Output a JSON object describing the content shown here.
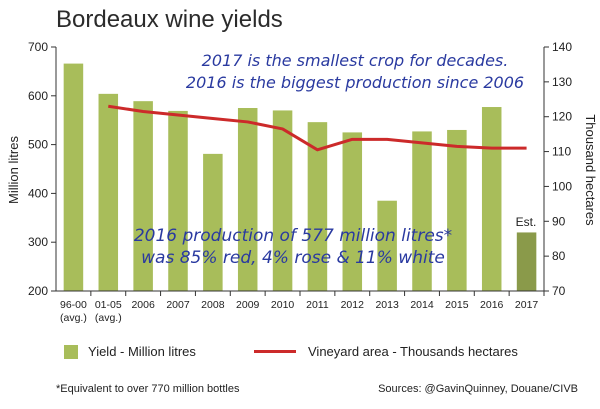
{
  "title": "Bordeaux wine yields",
  "footnote": "*Equivalent to over 770 million bottles",
  "sources": "Sources: @GavinQuinney, Douane/CIVB",
  "colors": {
    "bar": "#a8bd5a",
    "bar_estimate": "#8a9a4a",
    "line": "#cc2a2a",
    "annotation": "#2a3aa0"
  },
  "annotations": {
    "top_line1": "2017 is the smallest crop for decades.",
    "top_line2": "2016 is the biggest production since 2006",
    "bottom_line1": "2016 production of 577 million litres*",
    "bottom_line2": "was 85% red, 4% rose & 11% white",
    "est": "Est."
  },
  "chart_data": {
    "type": "bar",
    "title": "Bordeaux wine yields",
    "categories": [
      "96-00 (avg.)",
      "01-05 (avg.)",
      "2006",
      "2007",
      "2008",
      "2009",
      "2010",
      "2011",
      "2012",
      "2013",
      "2014",
      "2015",
      "2016",
      "2017"
    ],
    "category_lines": [
      [
        "96-00",
        "(avg.)"
      ],
      [
        "01-05",
        "(avg.)"
      ],
      [
        "2006"
      ],
      [
        "2007"
      ],
      [
        "2008"
      ],
      [
        "2009"
      ],
      [
        "2010"
      ],
      [
        "2011"
      ],
      [
        "2012"
      ],
      [
        "2013"
      ],
      [
        "2014"
      ],
      [
        "2015"
      ],
      [
        "2016"
      ],
      [
        "2017"
      ]
    ],
    "series": [
      {
        "name": "Yield - Million litres",
        "type": "bar",
        "axis": "left",
        "values": [
          666,
          604,
          589,
          569,
          481,
          575,
          570,
          546,
          525,
          385,
          527,
          530,
          577,
          320
        ],
        "estimated_index": 13
      },
      {
        "name": "Vineyard area - Thousands hectares",
        "type": "line",
        "axis": "right",
        "values": [
          null,
          123,
          121.5,
          120.5,
          119.5,
          118.5,
          116.5,
          110.5,
          113.5,
          113.5,
          112.5,
          111.5,
          111,
          111
        ]
      }
    ],
    "ylabel": "Million litres",
    "ylabel_right": "Thousand hectares",
    "ylim": [
      200,
      700
    ],
    "ylim_right": [
      70,
      140
    ],
    "yticks": [
      200,
      300,
      400,
      500,
      600,
      700
    ],
    "yticks_right": [
      70,
      80,
      90,
      100,
      110,
      120,
      130,
      140
    ],
    "grid": false,
    "legend_position": "bottom"
  }
}
